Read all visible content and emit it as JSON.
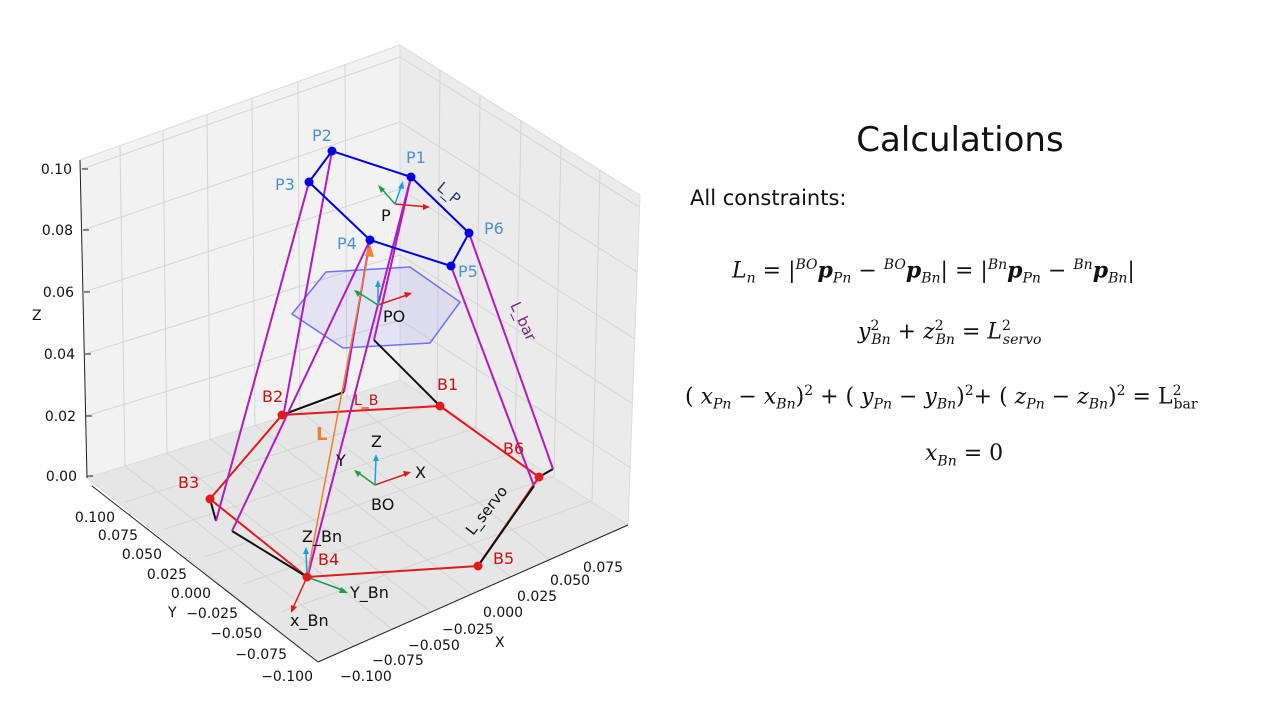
{
  "panel": {
    "title": "Calculations",
    "subtitle": "All constraints:"
  },
  "equations": {
    "eq1": {
      "L": "L",
      "n": "n",
      "eq": "=",
      "bar": "|",
      "BO": "BO",
      "Bn": "Bn",
      "p": "p",
      "Pn": "Pn",
      "Bn2": "Bn",
      "minus": "−"
    },
    "eq2": {
      "y": "y",
      "z": "z",
      "Bn": "Bn",
      "two": "2",
      "plus": "+",
      "eq": "=",
      "L": "L",
      "servo": "servo"
    },
    "eq3": {
      "x": "x",
      "y": "y",
      "z": "z",
      "Pn": "Pn",
      "Bn": "Bn",
      "two": "2",
      "L": "L",
      "bar": "bar"
    },
    "eq4": {
      "x": "x",
      "Bn": "Bn",
      "eq": "=",
      "zero": "0"
    }
  },
  "diagram": {
    "axes": {
      "z_label": "Z",
      "y_label": "Y",
      "x_label": "X",
      "z_ticks": [
        "0.10",
        "0.08",
        "0.06",
        "0.04",
        "0.02",
        "0.00"
      ],
      "y_ticks": [
        "0.100",
        "0.075",
        "0.050",
        "0.025",
        "0.000",
        "−0.025",
        "−0.050",
        "−0.075",
        "−0.100"
      ],
      "x_ticks": [
        "−0.100",
        "−0.075",
        "−0.050",
        "−0.025",
        "0.000",
        "0.025",
        "0.050",
        "0.075"
      ]
    },
    "platform_points": [
      "P1",
      "P2",
      "P3",
      "P4",
      "P5",
      "P6"
    ],
    "base_points": [
      "B1",
      "B2",
      "B3",
      "B4",
      "B5",
      "B6"
    ],
    "labels": {
      "P": "P",
      "PO": "PO",
      "BO": "BO",
      "frame_X": "X",
      "frame_Y": "Y",
      "frame_Z": "Z",
      "Z_Bn": "Z_Bn",
      "Y_Bn": "Y_Bn",
      "x_Bn": "x_Bn",
      "L_B": "L_B",
      "L_P": "L_P",
      "L": "L",
      "L_bar": "L_bar",
      "L_servo": "L_servo"
    },
    "colors": {
      "platform": "#0000dd",
      "base": "#e31a1c",
      "rod": "#b11bc0",
      "servo": "#111111",
      "hexagon": "#7070ff",
      "L_vector": "#f07f2f",
      "frame_x": "#e31a1c",
      "frame_y": "#1a9e4a",
      "frame_z": "#1aa0e0",
      "platform_label": "#4a90d9",
      "base_label": "#cc1111"
    }
  }
}
